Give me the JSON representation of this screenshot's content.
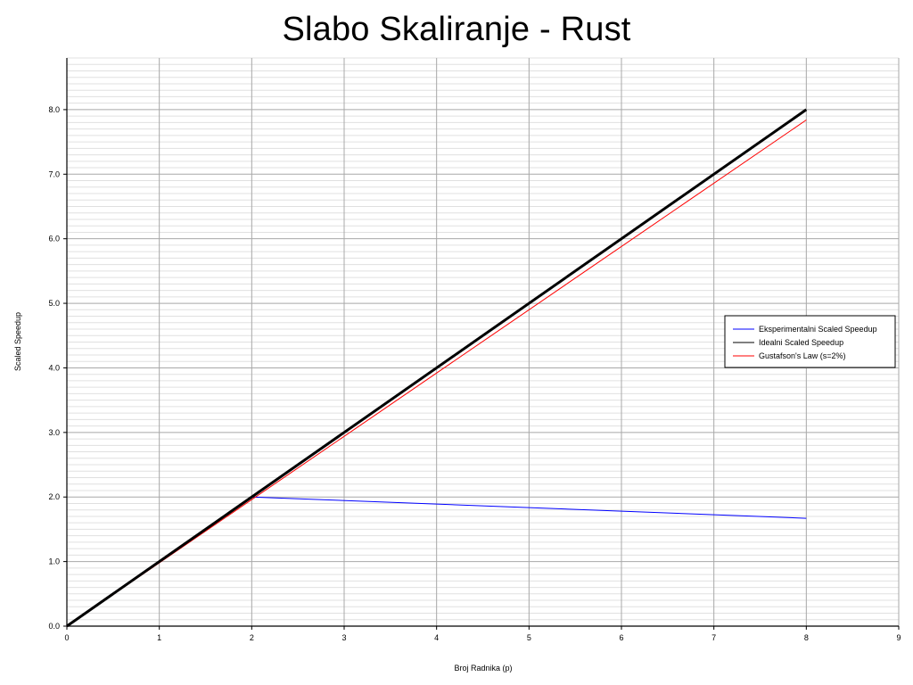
{
  "chart_data": {
    "type": "line",
    "title": "Slabo Skaliranje - Rust",
    "xlabel": "Broj Radnika (p)",
    "ylabel": "Scaled Speedup",
    "xlim": [
      0,
      9
    ],
    "ylim": [
      0,
      8.8
    ],
    "xticks": [
      0,
      1,
      2,
      3,
      4,
      5,
      6,
      7,
      8,
      9
    ],
    "xtick_labels": [
      "0",
      "1",
      "2",
      "3",
      "4",
      "5",
      "6",
      "7",
      "8",
      "9"
    ],
    "yticks": [
      0,
      1,
      2,
      3,
      4,
      5,
      6,
      7,
      8
    ],
    "ytick_labels": [
      "0.0",
      "1.0",
      "2.0",
      "3.0",
      "4.0",
      "5.0",
      "6.0",
      "7.0",
      "8.0"
    ],
    "grid": true,
    "legend_position": "right",
    "series": [
      {
        "name": "Eksperimentalni Scaled Speedup",
        "color": "#0000ff",
        "x": [
          0,
          1,
          2,
          8
        ],
        "y": [
          0,
          1,
          2.0,
          1.67
        ]
      },
      {
        "name": "Idealni Scaled Speedup",
        "color": "#000000",
        "x": [
          0,
          8
        ],
        "y": [
          0,
          8
        ]
      },
      {
        "name": "Gustafson's Law (s=2%)",
        "color": "#ff0000",
        "x": [
          0,
          8
        ],
        "y": [
          0,
          7.84
        ]
      }
    ]
  }
}
